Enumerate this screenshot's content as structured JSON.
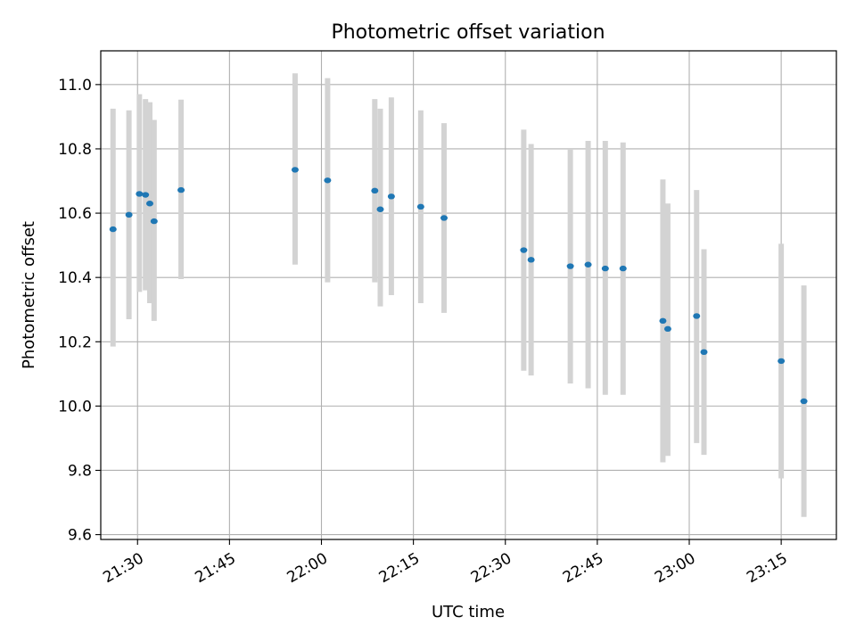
{
  "chart_data": {
    "type": "scatter",
    "title": "Photometric offset variation",
    "xlabel": "UTC time",
    "ylabel": "Photometric offset",
    "xlim": [
      "21:24",
      "23:24"
    ],
    "ylim": [
      9.585,
      11.105
    ],
    "grid": true,
    "x_ticks": [
      "21:30",
      "21:45",
      "22:00",
      "22:15",
      "22:30",
      "22:45",
      "23:00",
      "23:15"
    ],
    "y_ticks": [
      "9.6",
      "9.8",
      "10.0",
      "10.2",
      "10.4",
      "10.6",
      "10.8",
      "11.0"
    ],
    "colors": {
      "point": "#1f77b4",
      "errorbar": "#d3d3d3",
      "grid": "#b0b0b0"
    },
    "points": [
      {
        "x": "21:26:00",
        "y": 10.55,
        "yerr_low": 10.185,
        "yerr_high": 10.925
      },
      {
        "x": "21:28:36",
        "y": 10.595,
        "yerr_low": 10.27,
        "yerr_high": 10.92
      },
      {
        "x": "21:30:18",
        "y": 10.66,
        "yerr_low": 10.355,
        "yerr_high": 10.97
      },
      {
        "x": "21:31:18",
        "y": 10.657,
        "yerr_low": 10.36,
        "yerr_high": 10.955
      },
      {
        "x": "21:32:00",
        "y": 10.63,
        "yerr_low": 10.32,
        "yerr_high": 10.945
      },
      {
        "x": "21:32:42",
        "y": 10.575,
        "yerr_low": 10.265,
        "yerr_high": 10.89
      },
      {
        "x": "21:37:06",
        "y": 10.672,
        "yerr_low": 10.395,
        "yerr_high": 10.953
      },
      {
        "x": "21:55:42",
        "y": 10.735,
        "yerr_low": 10.44,
        "yerr_high": 11.035
      },
      {
        "x": "22:01:00",
        "y": 10.702,
        "yerr_low": 10.385,
        "yerr_high": 11.02
      },
      {
        "x": "22:08:42",
        "y": 10.67,
        "yerr_low": 10.385,
        "yerr_high": 10.955
      },
      {
        "x": "22:09:36",
        "y": 10.612,
        "yerr_low": 10.31,
        "yerr_high": 10.925
      },
      {
        "x": "22:11:24",
        "y": 10.652,
        "yerr_low": 10.345,
        "yerr_high": 10.96
      },
      {
        "x": "22:16:12",
        "y": 10.62,
        "yerr_low": 10.32,
        "yerr_high": 10.92
      },
      {
        "x": "22:20:00",
        "y": 10.585,
        "yerr_low": 10.29,
        "yerr_high": 10.88
      },
      {
        "x": "22:33:00",
        "y": 10.485,
        "yerr_low": 10.11,
        "yerr_high": 10.86
      },
      {
        "x": "22:34:12",
        "y": 10.455,
        "yerr_low": 10.095,
        "yerr_high": 10.815
      },
      {
        "x": "22:40:36",
        "y": 10.435,
        "yerr_low": 10.07,
        "yerr_high": 10.8
      },
      {
        "x": "22:43:30",
        "y": 10.44,
        "yerr_low": 10.055,
        "yerr_high": 10.825
      },
      {
        "x": "22:46:18",
        "y": 10.428,
        "yerr_low": 10.035,
        "yerr_high": 10.825
      },
      {
        "x": "22:49:12",
        "y": 10.428,
        "yerr_low": 10.035,
        "yerr_high": 10.82
      },
      {
        "x": "22:55:42",
        "y": 10.265,
        "yerr_low": 9.825,
        "yerr_high": 10.705
      },
      {
        "x": "22:56:30",
        "y": 10.24,
        "yerr_low": 9.845,
        "yerr_high": 10.63
      },
      {
        "x": "23:01:12",
        "y": 10.28,
        "yerr_low": 9.885,
        "yerr_high": 10.672
      },
      {
        "x": "23:02:24",
        "y": 10.168,
        "yerr_low": 9.848,
        "yerr_high": 10.488
      },
      {
        "x": "23:15:00",
        "y": 10.14,
        "yerr_low": 9.775,
        "yerr_high": 10.505
      },
      {
        "x": "23:18:42",
        "y": 10.015,
        "yerr_low": 9.655,
        "yerr_high": 10.375
      }
    ]
  }
}
